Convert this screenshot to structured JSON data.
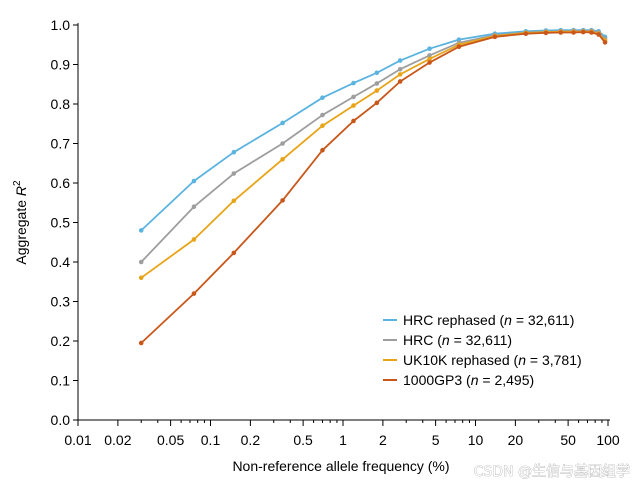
{
  "chart_data": {
    "type": "line",
    "title": "",
    "xlabel": "Non-reference allele frequency (%)",
    "ylabel": "Aggregate R",
    "ylabel_superscript": "2",
    "xscale": "log",
    "xlim": [
      0.01,
      100
    ],
    "ylim": [
      0.0,
      1.0
    ],
    "xticks_major": [
      0.01,
      0.02,
      0.05,
      0.1,
      0.2,
      0.5,
      1,
      2,
      5,
      10,
      20,
      50,
      100
    ],
    "xtick_labels": [
      "0.01",
      "0.02",
      "0.05",
      "0.1",
      "0.2",
      "0.5",
      "1",
      "2",
      "5",
      "10",
      "20",
      "50",
      "100"
    ],
    "xticks_minor": [
      0.03,
      0.04,
      0.06,
      0.07,
      0.08,
      0.09,
      0.3,
      0.4,
      0.6,
      0.7,
      0.8,
      0.9,
      3,
      4,
      6,
      7,
      8,
      9,
      30,
      40,
      60,
      70,
      80,
      90
    ],
    "yticks": [
      0.0,
      0.1,
      0.2,
      0.3,
      0.4,
      0.5,
      0.6,
      0.7,
      0.8,
      0.9,
      1.0
    ],
    "ytick_labels": [
      "0.0",
      "0.1",
      "0.2",
      "0.3",
      "0.4",
      "0.5",
      "0.6",
      "0.7",
      "0.8",
      "0.9",
      "1.0"
    ],
    "grid": false,
    "legend_position": "bottom-right",
    "series": [
      {
        "name_main": "HRC rephased (",
        "name_italic": "n",
        "name_rest": " = 32,611)",
        "color": "#5bb3e0",
        "x": [
          0.03,
          0.075,
          0.15,
          0.35,
          0.7,
          1.2,
          1.8,
          2.7,
          4.5,
          7.5,
          14,
          24,
          34,
          44,
          55,
          65,
          75,
          85,
          95
        ],
        "y": [
          0.48,
          0.605,
          0.678,
          0.752,
          0.816,
          0.853,
          0.879,
          0.91,
          0.94,
          0.963,
          0.978,
          0.984,
          0.986,
          0.987,
          0.987,
          0.987,
          0.987,
          0.984,
          0.97
        ]
      },
      {
        "name_main": "HRC (",
        "name_italic": "n",
        "name_rest": " = 32,611)",
        "color": "#9e9e9e",
        "x": [
          0.03,
          0.075,
          0.15,
          0.35,
          0.7,
          1.2,
          1.8,
          2.7,
          4.5,
          7.5,
          14,
          24,
          34,
          44,
          55,
          65,
          75,
          85,
          95
        ],
        "y": [
          0.4,
          0.54,
          0.624,
          0.7,
          0.772,
          0.818,
          0.852,
          0.888,
          0.923,
          0.955,
          0.974,
          0.981,
          0.983,
          0.984,
          0.985,
          0.985,
          0.985,
          0.981,
          0.965
        ]
      },
      {
        "name_main": "UK10K rephased (",
        "name_italic": "n",
        "name_rest": " = 3,781)",
        "color": "#e8a418",
        "x": [
          0.03,
          0.075,
          0.15,
          0.35,
          0.7,
          1.2,
          1.8,
          2.7,
          4.5,
          7.5,
          14,
          24,
          34,
          44,
          55,
          65,
          75,
          85,
          95
        ],
        "y": [
          0.36,
          0.457,
          0.555,
          0.66,
          0.745,
          0.796,
          0.834,
          0.875,
          0.914,
          0.95,
          0.972,
          0.98,
          0.982,
          0.983,
          0.983,
          0.983,
          0.983,
          0.978,
          0.96
        ]
      },
      {
        "name_main": "1000GP3 (",
        "name_italic": "n",
        "name_rest": " = 2,495)",
        "color": "#c9571a",
        "x": [
          0.03,
          0.075,
          0.15,
          0.35,
          0.7,
          1.2,
          1.8,
          2.7,
          4.5,
          7.5,
          14,
          24,
          34,
          44,
          55,
          65,
          75,
          85,
          95
        ],
        "y": [
          0.195,
          0.32,
          0.423,
          0.556,
          0.683,
          0.757,
          0.803,
          0.857,
          0.905,
          0.945,
          0.97,
          0.978,
          0.98,
          0.981,
          0.981,
          0.982,
          0.981,
          0.976,
          0.956
        ]
      }
    ]
  },
  "watermark": {
    "text": "CSDN @生信与基因组学"
  }
}
